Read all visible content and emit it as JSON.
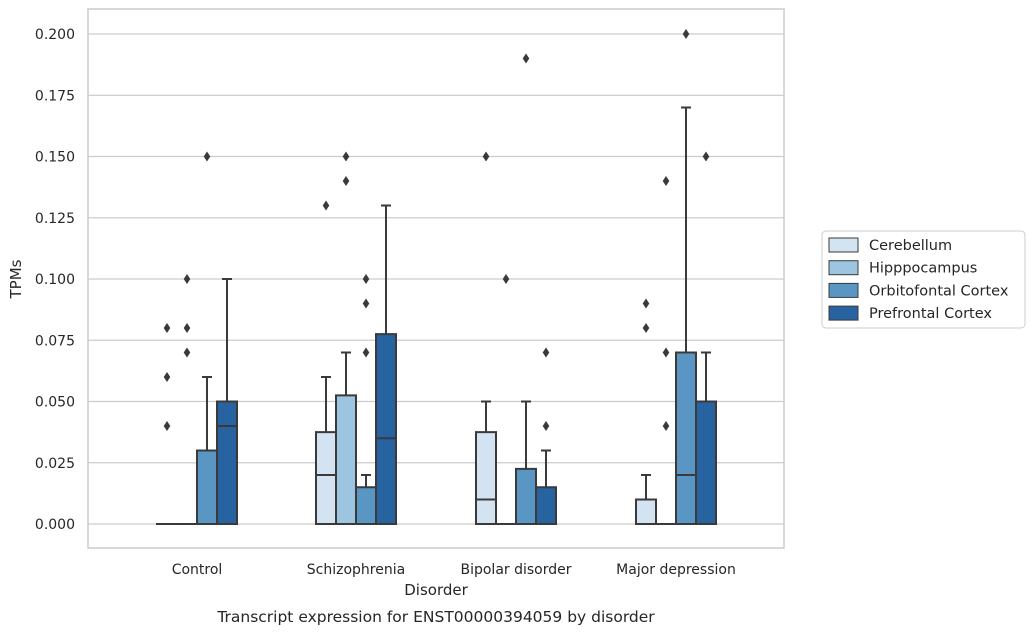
{
  "chart_data": {
    "type": "box",
    "title": "",
    "caption": "Transcript expression for ENST00000394059 by disorder",
    "xlabel": "Disorder",
    "ylabel": "TPMs",
    "ylim": [
      -0.01,
      0.21
    ],
    "yticks": [
      "0.000",
      "0.025",
      "0.050",
      "0.075",
      "0.100",
      "0.125",
      "0.150",
      "0.175",
      "0.200"
    ],
    "ytick_values": [
      0,
      0.025,
      0.05,
      0.075,
      0.1,
      0.125,
      0.15,
      0.175,
      0.2
    ],
    "grid": "horizontal",
    "legend_position": "right",
    "categories": [
      "Control",
      "Schizophrenia",
      "Bipolar disorder",
      "Major depression"
    ],
    "series": [
      {
        "name": "Cerebellum",
        "color": "#d3e3f2",
        "boxes": [
          {
            "whisker_low": 0,
            "q1": 0,
            "median": 0,
            "q3": 0,
            "whisker_high": 0,
            "outliers": [
              0.04,
              0.06,
              0.08
            ]
          },
          {
            "whisker_low": 0,
            "q1": 0,
            "median": 0.02,
            "q3": 0.0375,
            "whisker_high": 0.06,
            "outliers": [
              0.13
            ]
          },
          {
            "whisker_low": 0,
            "q1": 0,
            "median": 0.01,
            "q3": 0.0375,
            "whisker_high": 0.05,
            "outliers": [
              0.15
            ]
          },
          {
            "whisker_low": 0,
            "q1": 0,
            "median": 0,
            "q3": 0.01,
            "whisker_high": 0.02,
            "outliers": [
              0.08,
              0.09
            ]
          }
        ]
      },
      {
        "name": "Hipppocampus",
        "color": "#9ec5e0",
        "boxes": [
          {
            "whisker_low": 0,
            "q1": 0,
            "median": 0,
            "q3": 0,
            "whisker_high": 0,
            "outliers": [
              0.07,
              0.08,
              0.1
            ]
          },
          {
            "whisker_low": 0,
            "q1": 0,
            "median": 0,
            "q3": 0.0525,
            "whisker_high": 0.07,
            "outliers": [
              0.14,
              0.15
            ]
          },
          {
            "whisker_low": 0,
            "q1": 0,
            "median": 0,
            "q3": 0,
            "whisker_high": 0,
            "outliers": [
              0.1
            ]
          },
          {
            "whisker_low": 0,
            "q1": 0,
            "median": 0,
            "q3": 0,
            "whisker_high": 0,
            "outliers": [
              0.04,
              0.07,
              0.14
            ]
          }
        ]
      },
      {
        "name": "Orbitofontal Cortex",
        "color": "#5a96c3",
        "boxes": [
          {
            "whisker_low": 0,
            "q1": 0,
            "median": 0,
            "q3": 0.03,
            "whisker_high": 0.06,
            "outliers": [
              0.15
            ]
          },
          {
            "whisker_low": 0,
            "q1": 0,
            "median": 0,
            "q3": 0.015,
            "whisker_high": 0.02,
            "outliers": [
              0.07,
              0.09,
              0.1
            ]
          },
          {
            "whisker_low": 0,
            "q1": 0,
            "median": 0,
            "q3": 0.0225,
            "whisker_high": 0.05,
            "outliers": [
              0.19
            ]
          },
          {
            "whisker_low": 0,
            "q1": 0,
            "median": 0.02,
            "q3": 0.07,
            "whisker_high": 0.17,
            "outliers": [
              0.2
            ]
          }
        ]
      },
      {
        "name": "Prefrontal Cortex",
        "color": "#2763a1",
        "boxes": [
          {
            "whisker_low": 0,
            "q1": 0,
            "median": 0.04,
            "q3": 0.05,
            "whisker_high": 0.1,
            "outliers": []
          },
          {
            "whisker_low": 0,
            "q1": 0,
            "median": 0.035,
            "q3": 0.0775,
            "whisker_high": 0.13,
            "outliers": []
          },
          {
            "whisker_low": 0,
            "q1": 0,
            "median": 0,
            "q3": 0.015,
            "whisker_high": 0.03,
            "outliers": [
              0.04,
              0.07
            ]
          },
          {
            "whisker_low": 0,
            "q1": 0,
            "median": 0,
            "q3": 0.05,
            "whisker_high": 0.07,
            "outliers": [
              0.15
            ]
          }
        ]
      }
    ]
  }
}
